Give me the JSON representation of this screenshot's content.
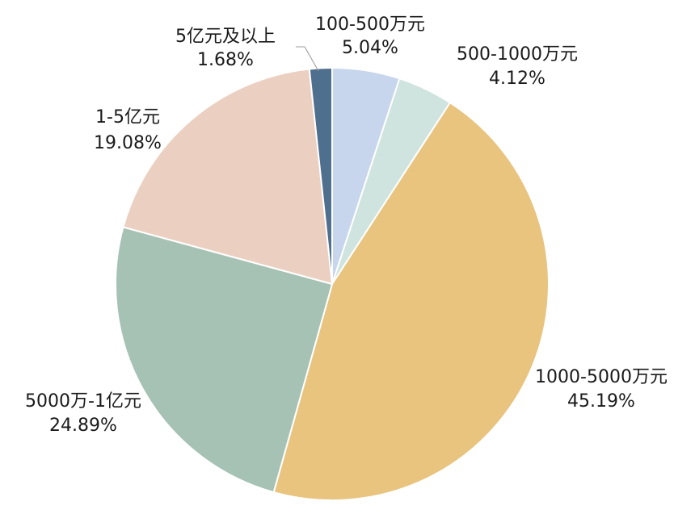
{
  "chart_data": {
    "type": "pie",
    "title": "",
    "start_angle_deg": 0,
    "direction": "clockwise",
    "slices": [
      {
        "label": "100-500万元",
        "value": 5.04,
        "value_label": "5.04%",
        "color": "#c7d6ec"
      },
      {
        "label": "500-1000万元",
        "value": 4.12,
        "value_label": "4.12%",
        "color": "#cfe3df"
      },
      {
        "label": "1000-5000万元",
        "value": 45.19,
        "value_label": "45.19%",
        "color": "#e8c47f"
      },
      {
        "label": "5000万-1亿元",
        "value": 24.89,
        "value_label": "24.89%",
        "color": "#a6c2b4"
      },
      {
        "label": "1-5亿元",
        "value": 19.08,
        "value_label": "19.08%",
        "color": "#ebd0c1"
      },
      {
        "label": "5亿元及以上",
        "value": 1.68,
        "value_label": "1.68%",
        "color": "#4f6f8f"
      }
    ]
  }
}
